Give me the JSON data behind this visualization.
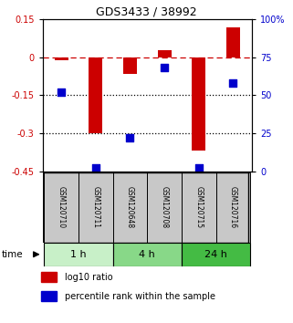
{
  "title": "GDS3433 / 38992",
  "samples": [
    "GSM120710",
    "GSM120711",
    "GSM120648",
    "GSM120708",
    "GSM120715",
    "GSM120716"
  ],
  "log10_ratio": [
    -0.01,
    -0.3,
    -0.065,
    0.028,
    -0.37,
    0.12
  ],
  "percentile_rank": [
    52,
    2,
    22,
    68,
    2,
    58
  ],
  "groups": [
    {
      "label": "1 h",
      "indices": [
        0,
        1
      ],
      "color": "#c8f0c8"
    },
    {
      "label": "4 h",
      "indices": [
        2,
        3
      ],
      "color": "#88d888"
    },
    {
      "label": "24 h",
      "indices": [
        4,
        5
      ],
      "color": "#44bb44"
    }
  ],
  "ylim_left": [
    -0.45,
    0.15
  ],
  "ylim_right": [
    0,
    100
  ],
  "yticks_left": [
    0.15,
    0.0,
    -0.15,
    -0.3,
    -0.45
  ],
  "yticks_right": [
    100,
    75,
    50,
    25,
    0
  ],
  "bar_color": "#cc0000",
  "dot_color": "#0000cc",
  "hline_color": "#cc0000",
  "dotted_line_color": "#000000",
  "bar_width": 0.4,
  "title_color": "#000000",
  "left_label_color": "#cc0000",
  "right_label_color": "#0000cc",
  "sample_box_color": "#c8c8c8",
  "bg_color": "#ffffff"
}
